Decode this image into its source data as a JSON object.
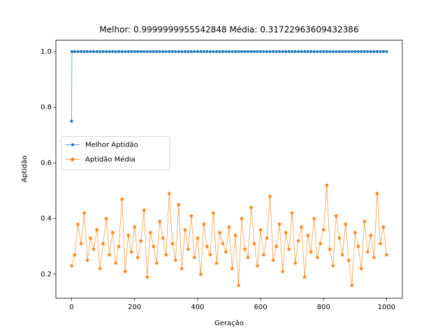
{
  "chart_data": {
    "type": "line",
    "title": "Melhor: 0.9999999955542848 Média: 0.31722963609432386",
    "xlabel": "Geração",
    "ylabel": "Aptidão",
    "xlim": [
      -50,
      1050
    ],
    "ylim": [
      0.114,
      1.041
    ],
    "xticks": [
      0,
      200,
      400,
      600,
      800,
      1000
    ],
    "yticks": [
      0.2,
      0.4,
      0.6,
      0.8,
      {
        "value": 1,
        "label": "1.0"
      }
    ],
    "legend": "center left",
    "series": [
      {
        "name": "Melhor Aptidão",
        "color": "#1f77b4",
        "marker": "circle",
        "x": [
          0,
          1,
          10,
          20,
          30,
          40,
          50,
          60,
          70,
          80,
          90,
          100,
          110,
          120,
          130,
          140,
          150,
          160,
          170,
          180,
          190,
          200,
          210,
          220,
          230,
          240,
          250,
          260,
          270,
          280,
          290,
          300,
          310,
          320,
          330,
          340,
          350,
          360,
          370,
          380,
          390,
          400,
          410,
          420,
          430,
          440,
          450,
          460,
          470,
          480,
          490,
          500,
          510,
          520,
          530,
          540,
          550,
          560,
          570,
          580,
          590,
          600,
          610,
          620,
          630,
          640,
          650,
          660,
          670,
          680,
          690,
          700,
          710,
          720,
          730,
          740,
          750,
          760,
          770,
          780,
          790,
          800,
          810,
          820,
          830,
          840,
          850,
          860,
          870,
          880,
          890,
          900,
          910,
          920,
          930,
          940,
          950,
          960,
          970,
          980,
          990,
          1000
        ],
        "values": [
          0.75,
          1,
          1,
          1,
          1,
          1,
          1,
          1,
          1,
          1,
          1,
          1,
          1,
          1,
          1,
          1,
          1,
          1,
          1,
          1,
          1,
          1,
          1,
          1,
          1,
          1,
          1,
          1,
          1,
          1,
          1,
          1,
          1,
          1,
          1,
          1,
          1,
          1,
          1,
          1,
          1,
          1,
          1,
          1,
          1,
          1,
          1,
          1,
          1,
          1,
          1,
          1,
          1,
          1,
          1,
          1,
          1,
          1,
          1,
          1,
          1,
          1,
          1,
          1,
          1,
          1,
          1,
          1,
          1,
          1,
          1,
          1,
          1,
          1,
          1,
          1,
          1,
          1,
          1,
          1,
          1,
          1,
          1,
          1,
          1,
          1,
          1,
          1,
          1,
          1,
          1,
          1,
          1,
          1,
          1,
          1,
          1,
          1,
          1,
          1,
          1,
          1
        ]
      },
      {
        "name": "Aptidão Média",
        "color": "#ff7f0e",
        "marker": "star",
        "x": [
          0,
          10,
          20,
          30,
          40,
          50,
          60,
          70,
          80,
          90,
          100,
          110,
          120,
          130,
          140,
          150,
          160,
          170,
          180,
          190,
          200,
          210,
          220,
          230,
          240,
          250,
          260,
          270,
          280,
          290,
          300,
          310,
          320,
          330,
          340,
          350,
          360,
          370,
          380,
          390,
          400,
          410,
          420,
          430,
          440,
          450,
          460,
          470,
          480,
          490,
          500,
          510,
          520,
          530,
          540,
          550,
          560,
          570,
          580,
          590,
          600,
          610,
          620,
          630,
          640,
          650,
          660,
          670,
          680,
          690,
          700,
          710,
          720,
          730,
          740,
          750,
          760,
          770,
          780,
          790,
          800,
          810,
          820,
          830,
          840,
          850,
          860,
          870,
          880,
          890,
          900,
          910,
          920,
          930,
          940,
          950,
          960,
          970,
          980,
          990,
          1000
        ],
        "values": [
          0.23,
          0.27,
          0.38,
          0.31,
          0.42,
          0.25,
          0.33,
          0.29,
          0.36,
          0.22,
          0.31,
          0.4,
          0.27,
          0.35,
          0.24,
          0.3,
          0.47,
          0.21,
          0.34,
          0.28,
          0.37,
          0.26,
          0.32,
          0.43,
          0.19,
          0.35,
          0.3,
          0.24,
          0.39,
          0.33,
          0.27,
          0.49,
          0.31,
          0.25,
          0.45,
          0.22,
          0.36,
          0.29,
          0.41,
          0.26,
          0.33,
          0.2,
          0.38,
          0.3,
          0.27,
          0.42,
          0.24,
          0.35,
          0.31,
          0.28,
          0.37,
          0.22,
          0.34,
          0.16,
          0.4,
          0.29,
          0.26,
          0.44,
          0.31,
          0.23,
          0.36,
          0.27,
          0.33,
          0.48,
          0.25,
          0.3,
          0.38,
          0.21,
          0.35,
          0.29,
          0.42,
          0.24,
          0.32,
          0.37,
          0.19,
          0.34,
          0.28,
          0.4,
          0.26,
          0.31,
          0.36,
          0.52,
          0.29,
          0.23,
          0.41,
          0.33,
          0.27,
          0.38,
          0.25,
          0.16,
          0.35,
          0.3,
          0.22,
          0.39,
          0.28,
          0.34,
          0.26,
          0.49,
          0.31,
          0.37,
          0.27
        ]
      }
    ]
  }
}
